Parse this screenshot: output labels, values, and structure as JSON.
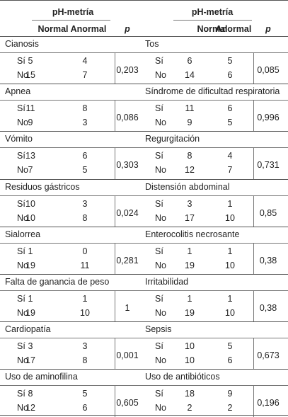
{
  "table": {
    "left": {
      "group_header": "pH-metría",
      "col_normal": "Normal",
      "col_anormal": "Anormal",
      "col_p": "p",
      "sections": [
        {
          "title": "Cianosis",
          "p": "0,203",
          "rows": [
            {
              "label": "Sí",
              "normal": "5",
              "anormal": "4"
            },
            {
              "label": "No",
              "normal": "15",
              "anormal": "7"
            }
          ]
        },
        {
          "title": "Apnea",
          "p": "0,086",
          "rows": [
            {
              "label": "Sí",
              "normal": "11",
              "anormal": "8"
            },
            {
              "label": "No",
              "normal": "9",
              "anormal": "3"
            }
          ]
        },
        {
          "title": "Vómito",
          "p": "0,303",
          "rows": [
            {
              "label": "Sí",
              "normal": "13",
              "anormal": "6"
            },
            {
              "label": "No",
              "normal": "7",
              "anormal": "5"
            }
          ]
        },
        {
          "title": "Residuos gástricos",
          "p": "0,024",
          "rows": [
            {
              "label": "Sí",
              "normal": "10",
              "anormal": "3"
            },
            {
              "label": "No",
              "normal": "10",
              "anormal": "8"
            }
          ]
        },
        {
          "title": "Sialorrea",
          "p": "0,281",
          "rows": [
            {
              "label": "Sí",
              "normal": "1",
              "anormal": "0"
            },
            {
              "label": "No",
              "normal": "19",
              "anormal": "11"
            }
          ]
        },
        {
          "title": "Falta de ganancia de peso",
          "p": "1",
          "rows": [
            {
              "label": "Sí",
              "normal": "1",
              "anormal": "1"
            },
            {
              "label": "No",
              "normal": "19",
              "anormal": "10"
            }
          ]
        },
        {
          "title": "Cardiopatía",
          "p": "0,001",
          "rows": [
            {
              "label": "Sí",
              "normal": "3",
              "anormal": "3"
            },
            {
              "label": "No",
              "normal": "17",
              "anormal": "8"
            }
          ]
        },
        {
          "title": "Uso de aminofilina",
          "p": "0,605",
          "rows": [
            {
              "label": "Sí",
              "normal": "8",
              "anormal": "5"
            },
            {
              "label": "No",
              "normal": "12",
              "anormal": "6"
            }
          ]
        }
      ]
    },
    "right": {
      "group_header": "pH-metría",
      "col_normal": "Normal",
      "col_anormal": "Anormal",
      "col_p": "p",
      "sections": [
        {
          "title": "Tos",
          "p": "0,085",
          "rows": [
            {
              "label": "Sí",
              "normal": "6",
              "anormal": "5"
            },
            {
              "label": "No",
              "normal": "14",
              "anormal": "6"
            }
          ]
        },
        {
          "title": "Síndrome de dificultad respiratoria",
          "p": "0,996",
          "rows": [
            {
              "label": "Sí",
              "normal": "11",
              "anormal": "6"
            },
            {
              "label": "No",
              "normal": "9",
              "anormal": "5"
            }
          ]
        },
        {
          "title": "Regurgitación",
          "p": "0,731",
          "rows": [
            {
              "label": "Sí",
              "normal": "8",
              "anormal": "4"
            },
            {
              "label": "No",
              "normal": "12",
              "anormal": "7"
            }
          ]
        },
        {
          "title": "Distensión abdominal",
          "p": "0,85",
          "rows": [
            {
              "label": "Sí",
              "normal": "3",
              "anormal": "1"
            },
            {
              "label": "No",
              "normal": "17",
              "anormal": "10"
            }
          ]
        },
        {
          "title": "Enterocolitis necrosante",
          "p": "0,38",
          "rows": [
            {
              "label": "Sí",
              "normal": "1",
              "anormal": "1"
            },
            {
              "label": "No",
              "normal": "19",
              "anormal": "10"
            }
          ]
        },
        {
          "title": "Irritabilidad",
          "p": "0,38",
          "rows": [
            {
              "label": "Sí",
              "normal": "1",
              "anormal": "1"
            },
            {
              "label": "No",
              "normal": "19",
              "anormal": "10"
            }
          ]
        },
        {
          "title": "Sepsis",
          "p": "0,673",
          "rows": [
            {
              "label": "Sí",
              "normal": "10",
              "anormal": "5"
            },
            {
              "label": "No",
              "normal": "10",
              "anormal": "6"
            }
          ]
        },
        {
          "title": "Uso de antibióticos",
          "p": "0,196",
          "rows": [
            {
              "label": "Sí",
              "normal": "18",
              "anormal": "9"
            },
            {
              "label": "No",
              "normal": "2",
              "anormal": "2"
            }
          ]
        }
      ]
    }
  }
}
